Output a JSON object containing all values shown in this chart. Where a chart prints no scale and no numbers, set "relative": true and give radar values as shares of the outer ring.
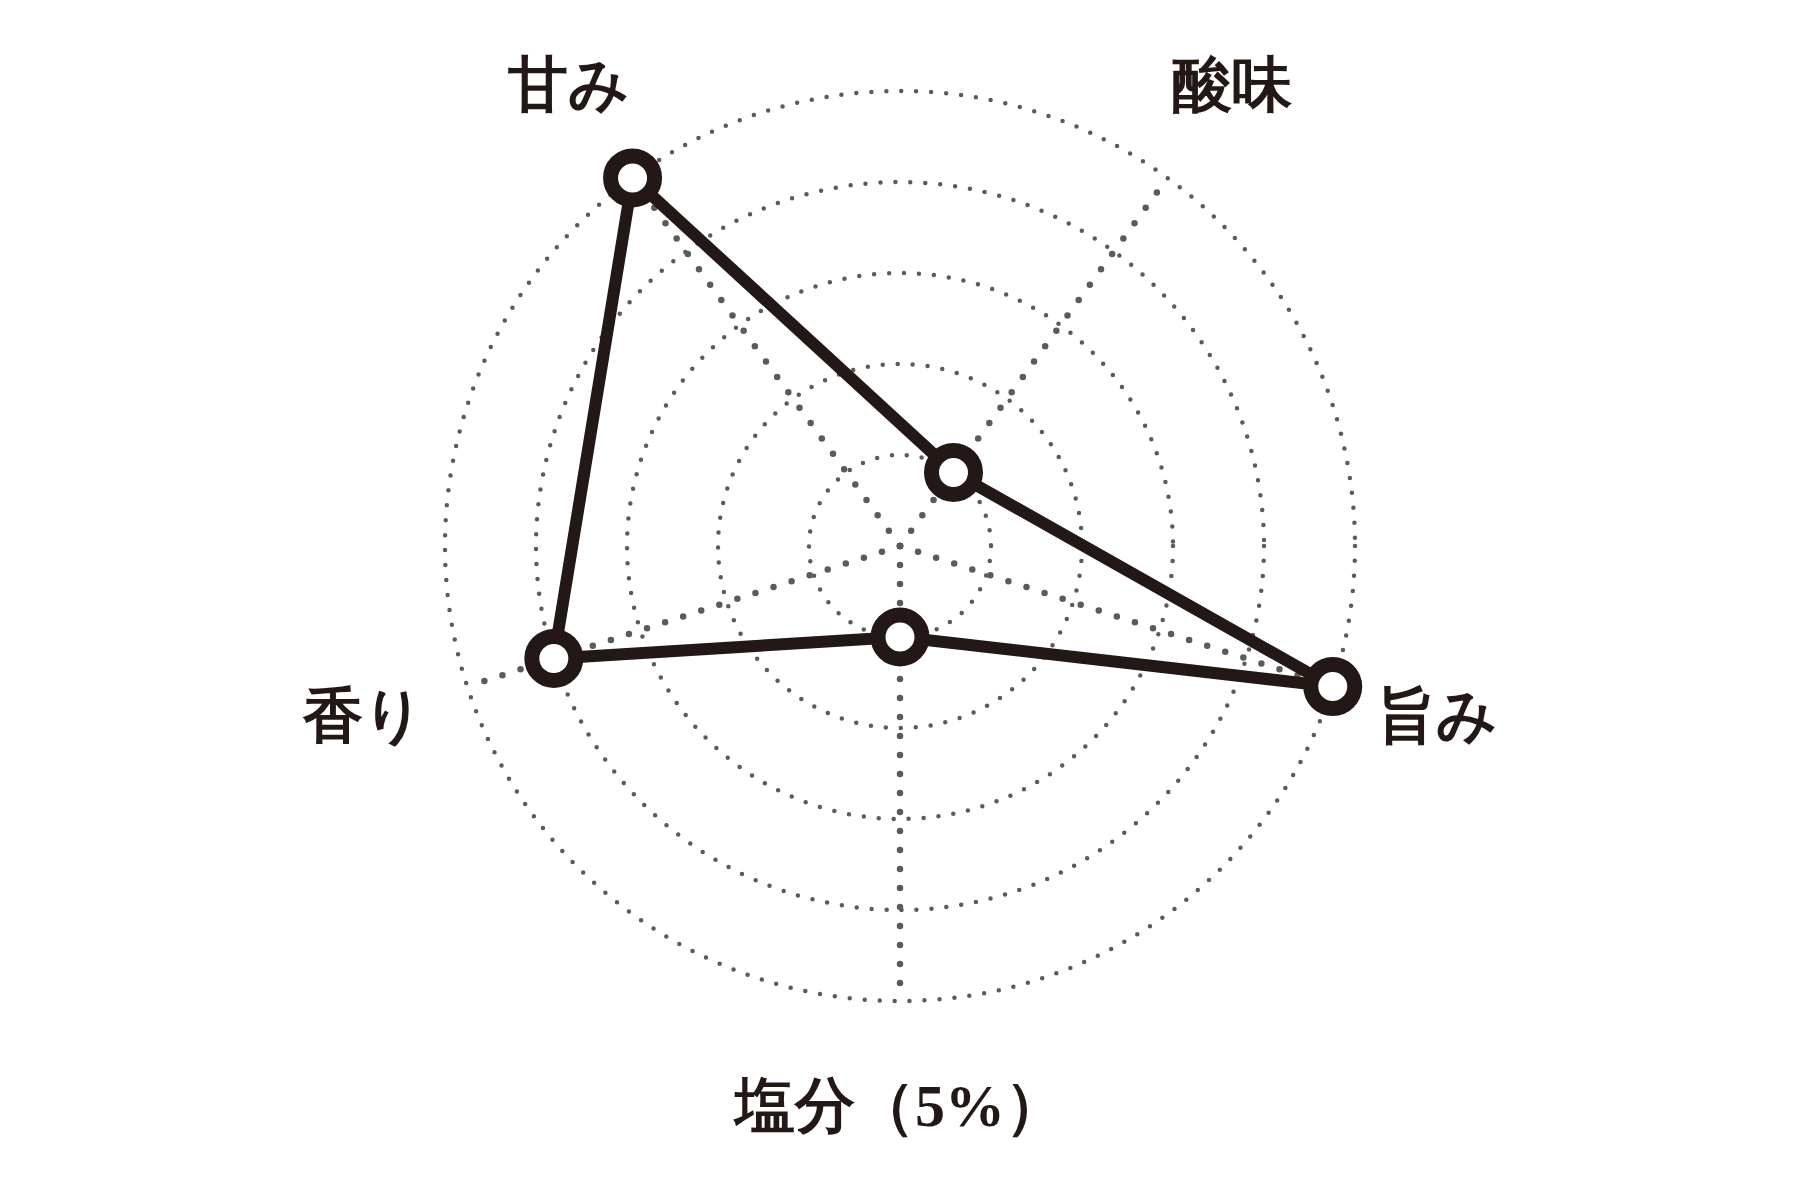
{
  "chart_data": {
    "type": "radar",
    "categories": [
      "酸味",
      "旨み",
      "塩分（5%）",
      "香り",
      "甘み"
    ],
    "relative": true,
    "series": [
      {
        "color": "#231815",
        "values": [
          0.2,
          1,
          0.2,
          0.8,
          1
        ]
      }
    ],
    "grid": true,
    "marker": "circle"
  }
}
